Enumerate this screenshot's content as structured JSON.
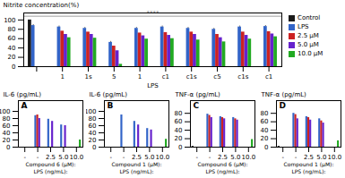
{
  "chart_data": [
    {
      "type": "bar",
      "xlabel": "LPS",
      "ylabel": "Nitrite concentration(%)",
      "categories": [
        null,
        "1",
        "1s",
        "5",
        "1",
        "c1",
        "c1s",
        "c5",
        "c1s",
        "c1"
      ],
      "series": [
        {
          "name": "Control",
          "color": "#1a1a1a",
          "values": [
            100,
            null,
            null,
            null,
            null,
            null,
            null,
            null,
            null,
            null
          ]
        },
        {
          "name": "LPS",
          "color": "#3264c8",
          "values": [
            88,
            85,
            82,
            52,
            82,
            85,
            82,
            80,
            85,
            86
          ],
          "error_plus": [
            2,
            2,
            2,
            2,
            2,
            2,
            2,
            2,
            2,
            2
          ]
        },
        {
          "name": "2.5 μM",
          "color": "#cc2222",
          "values": [
            null,
            76,
            74,
            44,
            72,
            73,
            74,
            69,
            74,
            75
          ]
        },
        {
          "name": "5.0 μM",
          "color": "#6622cc",
          "values": [
            null,
            69,
            69,
            34,
            66,
            67,
            69,
            62,
            67,
            70
          ]
        },
        {
          "name": "10.0 μM",
          "color": "#22aa22",
          "values": [
            null,
            62,
            61,
            5,
            59,
            60,
            57,
            53,
            59,
            64
          ]
        }
      ],
      "ylim": [
        0,
        115
      ],
      "yticks": [
        0,
        20,
        40,
        60,
        80,
        100
      ],
      "legend": "upper right",
      "annotations": [
        {
          "text": "****",
          "y": 108
        }
      ]
    },
    {
      "type": "bar",
      "title": "A",
      "ylabel": "IL-6 (pg/mL)",
      "categories": [
        "-",
        "-",
        "2.5",
        "5.0",
        "10.0"
      ],
      "series": [
        {
          "name": "Control",
          "color": "#1a1a1a",
          "values": [
            null,
            null,
            null,
            null,
            null
          ]
        },
        {
          "name": "LPS",
          "color": "#3264c8",
          "values": [
            null,
            88,
            78,
            62,
            null
          ]
        },
        {
          "name": "2.5 μM",
          "color": "#cc2222",
          "values": [
            null,
            90,
            null,
            null,
            null
          ]
        },
        {
          "name": "5.0 μM",
          "color": "#6622cc",
          "values": [
            null,
            80,
            72,
            60,
            null
          ]
        },
        {
          "name": "10.0 μM",
          "color": "#22aa22",
          "values": [
            null,
            null,
            null,
            null,
            20
          ]
        }
      ],
      "ylim": [
        0,
        130
      ],
      "yticks": [
        0,
        20,
        40,
        60,
        80,
        100
      ],
      "annotations": [
        {
          "text": "Compound 6 (μM):"
        },
        {
          "text": "LPS (ng/mL):"
        }
      ]
    },
    {
      "type": "bar",
      "title": "B",
      "ylabel": "IL-6 (pg/mL)",
      "categories": [
        "-",
        "-",
        "2.5",
        "5.0",
        "10.0"
      ],
      "series": [
        {
          "name": "Control",
          "color": "#1a1a1a",
          "values": [
            null,
            null,
            null,
            null,
            null
          ]
        },
        {
          "name": "LPS",
          "color": "#3264c8",
          "values": [
            null,
            90,
            72,
            52,
            null
          ]
        },
        {
          "name": "2.5 μM",
          "color": "#cc2222",
          "values": [
            null,
            null,
            null,
            null,
            null
          ]
        },
        {
          "name": "5.0 μM",
          "color": "#6622cc",
          "values": [
            null,
            null,
            62,
            48,
            null
          ]
        },
        {
          "name": "10.0 μM",
          "color": "#22aa22",
          "values": [
            null,
            null,
            null,
            null,
            22
          ]
        }
      ],
      "ylim": [
        0,
        130
      ],
      "yticks": [
        0,
        20,
        40,
        60,
        80,
        100
      ],
      "annotations": [
        {
          "text": "Compound 1 (μM):"
        },
        {
          "text": "LPS (ng/mL):"
        }
      ]
    },
    {
      "type": "bar",
      "title": "C",
      "ylabel": "TNF-α (pg/mL)",
      "categories": [
        "-",
        "-",
        "2.5",
        "5.0",
        "10.0"
      ],
      "series": [
        {
          "name": "Control",
          "color": "#1a1a1a",
          "values": [
            2,
            null,
            null,
            null,
            null
          ]
        },
        {
          "name": "LPS",
          "color": "#3264c8",
          "values": [
            null,
            78,
            72,
            70,
            null
          ]
        },
        {
          "name": "2.5 μM",
          "color": "#cc2222",
          "values": [
            null,
            75,
            70,
            67,
            null
          ]
        },
        {
          "name": "5.0 μM",
          "color": "#6622cc",
          "values": [
            null,
            70,
            67,
            64,
            null
          ]
        },
        {
          "name": "10.0 μM",
          "color": "#22aa22",
          "values": [
            null,
            null,
            null,
            null,
            18
          ]
        }
      ],
      "ylim": [
        0,
        110
      ],
      "yticks": [
        0,
        20,
        40,
        60,
        80
      ],
      "annotations": [
        {
          "text": "Compound 6 (μM):"
        },
        {
          "text": "LPS (ng/mL):"
        }
      ]
    },
    {
      "type": "bar",
      "title": "D",
      "ylabel": "TNF-α (pg/mL)",
      "categories": [
        "-",
        "-",
        "2.5",
        "5.0",
        "10.0"
      ],
      "series": [
        {
          "name": "Control",
          "color": "#1a1a1a",
          "values": [
            2,
            null,
            null,
            null,
            null
          ]
        },
        {
          "name": "LPS",
          "color": "#3264c8",
          "values": [
            null,
            80,
            72,
            67,
            null
          ]
        },
        {
          "name": "2.5 μM",
          "color": "#cc2222",
          "values": [
            null,
            77,
            70,
            62,
            null
          ]
        },
        {
          "name": "5.0 μM",
          "color": "#6622cc",
          "values": [
            null,
            67,
            64,
            57,
            null
          ]
        },
        {
          "name": "10.0 μM",
          "color": "#22aa22",
          "values": [
            null,
            null,
            null,
            null,
            15
          ]
        }
      ],
      "ylim": [
        0,
        110
      ],
      "yticks": [
        0,
        20,
        40,
        60,
        80
      ],
      "annotations": [
        {
          "text": "Compound 1 (μM):"
        },
        {
          "text": "LPS (ng/mL):"
        }
      ]
    }
  ]
}
